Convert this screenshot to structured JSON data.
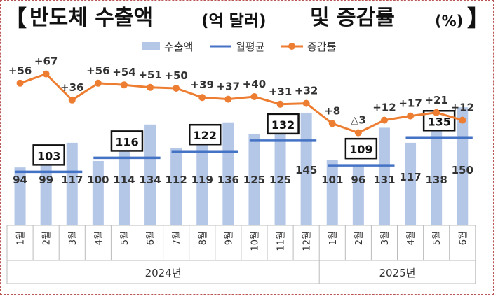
{
  "title": {
    "open_bracket": "【",
    "main": "반도체 수출액",
    "unit": "(억 달러)",
    "rest": "및 증감률",
    "percent": "(%)",
    "close_bracket": "】"
  },
  "colors": {
    "bar": "#b4c7e7",
    "avg_line": "#4472c4",
    "growth_line": "#ed7d31",
    "text": "#333333"
  },
  "chart_data": {
    "type": "bar",
    "legend": [
      "수출액",
      "월평균",
      "증감률"
    ],
    "legend_position": "top",
    "months": [
      "1월",
      "2월",
      "3월",
      "4월",
      "5월",
      "6월",
      "7월",
      "8월",
      "9월",
      "10월",
      "11월",
      "12월",
      "1월",
      "2월",
      "3월",
      "4월",
      "5월",
      "6월"
    ],
    "years": [
      {
        "label": "2024년",
        "start": 0,
        "end": 11
      },
      {
        "label": "2025년",
        "start": 12,
        "end": 17
      }
    ],
    "series": [
      {
        "name": "수출액",
        "type": "bar",
        "values": [
          94,
          99,
          117,
          100,
          114,
          134,
          112,
          119,
          136,
          125,
          125,
          145,
          101,
          96,
          131,
          117,
          138,
          150
        ]
      },
      {
        "name": "증감률",
        "type": "line",
        "values": [
          56,
          67,
          36,
          56,
          54,
          51,
          50,
          39,
          37,
          40,
          31,
          32,
          8,
          -3,
          12,
          17,
          21,
          12
        ],
        "labels": [
          "+56",
          "+67",
          "+36",
          "+56",
          "+54",
          "+51",
          "+50",
          "+39",
          "+37",
          "+40",
          "+31",
          "+32",
          "+8",
          "△3",
          "+12",
          "+17",
          "+21",
          "+12"
        ]
      }
    ],
    "averages": [
      {
        "label": "103",
        "value": 103,
        "start": 0,
        "end": 2
      },
      {
        "label": "116",
        "value": 116,
        "start": 3,
        "end": 5
      },
      {
        "label": "122",
        "value": 122,
        "start": 6,
        "end": 8
      },
      {
        "label": "132",
        "value": 132,
        "start": 9,
        "end": 11
      },
      {
        "label": "109",
        "value": 109,
        "start": 12,
        "end": 14
      },
      {
        "label": "135",
        "value": 135,
        "start": 15,
        "end": 17
      }
    ],
    "grid": false
  }
}
